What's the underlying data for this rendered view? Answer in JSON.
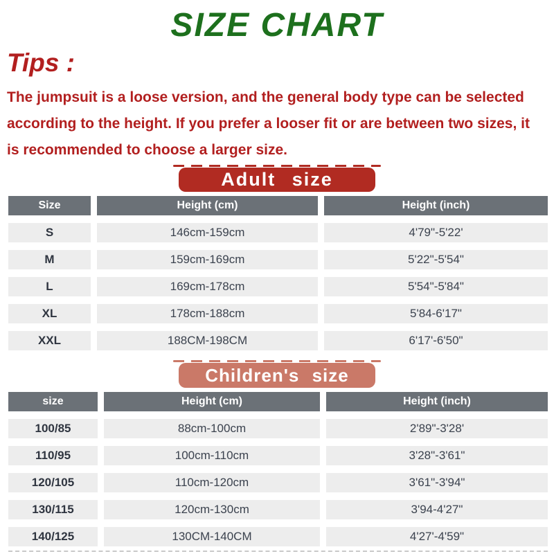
{
  "title": "SIZE CHART",
  "tips": {
    "heading": "Tips :",
    "body": "The jumpsuit is a loose version, and the general body type can be selected according to the height. If you prefer a looser fit or are between two sizes, it is recommended to choose a larger size."
  },
  "colors": {
    "green": "#1d701d",
    "red": "#b21f1f",
    "banner_red": "#b12b22",
    "banner_salmon": "#ca7968",
    "header_gray": "#6b7177",
    "row_bg": "#ededed",
    "cell_text": "#3b424e"
  },
  "chart_data": [
    {
      "type": "table",
      "title": "Adult size",
      "columns": [
        "Size",
        "Height (cm)",
        "Height (inch)"
      ],
      "rows": [
        [
          "S",
          "146cm-159cm",
          "4'79\"-5'22'"
        ],
        [
          "M",
          "159cm-169cm",
          "5'22\"-5'54\""
        ],
        [
          "L",
          "169cm-178cm",
          "5'54\"-5'84\""
        ],
        [
          "XL",
          "178cm-188cm",
          "5'84-6'17\""
        ],
        [
          "XXL",
          "188CM-198CM",
          "6'17'-6'50\""
        ]
      ]
    },
    {
      "type": "table",
      "title": "Children's size",
      "columns": [
        "size",
        "Height (cm)",
        "Height (inch)"
      ],
      "rows": [
        [
          "100/85",
          "88cm-100cm",
          "2'89\"-3'28'"
        ],
        [
          "110/95",
          "100cm-110cm",
          "3'28\"-3'61\""
        ],
        [
          "120/105",
          "110cm-120cm",
          "3'61\"-3'94\""
        ],
        [
          "130/115",
          "120cm-130cm",
          "3'94-4'27\""
        ],
        [
          "140/125",
          "130CM-140CM",
          "4'27'-4'59\""
        ]
      ]
    }
  ]
}
